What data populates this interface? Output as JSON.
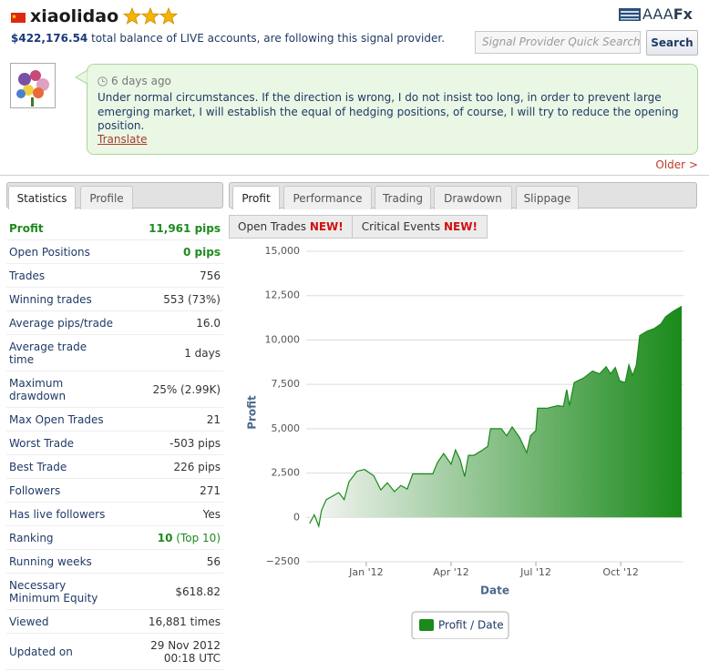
{
  "header": {
    "name": "xiaolidao",
    "balance": "$422,176.54",
    "balance_text": "total balance of LIVE accounts, are following this signal provider.",
    "logo": [
      "AAA",
      "Fx"
    ],
    "search_placeholder": "Signal Provider Quick Search",
    "search_button": "Search"
  },
  "comment": {
    "time": "6 days ago",
    "text": "Under normal circumstances. If the direction is wrong, I do not insist too long, in order to prevent large emerging market, I will establish the equal of hedging positions, of course, I will try to reduce the opening position.",
    "translate": "Translate",
    "older": "Older >"
  },
  "left_tabs": [
    "Statistics",
    "Profile"
  ],
  "stats": [
    {
      "label": "Profit",
      "value": "11,961 pips"
    },
    {
      "label": "Open Positions",
      "value": "0 pips"
    },
    {
      "label": "Trades",
      "value": "756"
    },
    {
      "label": "Winning trades",
      "value": "553 (73%)"
    },
    {
      "label": "Average pips/trade",
      "value": "16.0"
    },
    {
      "label": "Average trade time",
      "value": "1 days"
    },
    {
      "label": "Maximum drawdown",
      "value": "25% (2.99K)"
    },
    {
      "label": "Max Open Trades",
      "value": "21"
    },
    {
      "label": "Worst Trade",
      "value": "-503 pips"
    },
    {
      "label": "Best Trade",
      "value": "226 pips"
    },
    {
      "label": "Followers",
      "value": "271"
    },
    {
      "label": "Has live followers",
      "value": "Yes"
    },
    {
      "label": "Ranking",
      "value": "10",
      "note": "(Top 10)"
    },
    {
      "label": "Running weeks",
      "value": "56"
    },
    {
      "label": "Necessary Minimum Equity",
      "value": "$618.82"
    },
    {
      "label": "Viewed",
      "value": "16,881 times"
    },
    {
      "label": "Updated on",
      "value": "29 Nov 2012 00:18 UTC"
    }
  ],
  "right_tabs": [
    "Profit",
    "Performance",
    "Trading",
    "Drawdown",
    "Slippage"
  ],
  "sub_tabs": [
    {
      "label": "Open Trades",
      "badge": "NEW!"
    },
    {
      "label": "Critical Events",
      "badge": "NEW!"
    }
  ],
  "chart_data": {
    "type": "area",
    "y_label": "Profit",
    "x_label": "Date",
    "grid": true,
    "xlim": [
      2011.823,
      2012.935
    ],
    "xticks": [
      {
        "value": 2012,
        "label": "Jan '12"
      },
      {
        "value": 2012.25,
        "label": "Apr '12"
      },
      {
        "value": 2012.5,
        "label": "Jul '12"
      },
      {
        "value": 2012.75,
        "label": "Oct '12"
      }
    ],
    "ylim": [
      -2500,
      15000
    ],
    "yticks": [
      {
        "value": -2500,
        "label": "−2500"
      },
      0,
      {
        "value": 2500,
        "label": "2,500"
      },
      {
        "value": 5000,
        "label": "5,000"
      },
      {
        "value": 7500,
        "label": "7,500"
      },
      {
        "value": 10000,
        "label": "10,000"
      },
      {
        "value": 12500,
        "label": "12,500"
      },
      {
        "value": 15000,
        "label": "15,000"
      }
    ],
    "x": [
      2011.833,
      2011.847,
      2011.86,
      2011.868,
      2011.882,
      2011.901,
      2011.919,
      2011.935,
      2011.949,
      2011.973,
      2011.995,
      2012.022,
      2012.043,
      2012.062,
      2012.083,
      2012.102,
      2012.121,
      2012.137,
      2012.169,
      2012.196,
      2012.21,
      2012.228,
      2012.25,
      2012.263,
      2012.277,
      2012.29,
      2012.301,
      2012.317,
      2012.339,
      2012.358,
      2012.366,
      2012.398,
      2012.414,
      2012.43,
      2012.452,
      2012.473,
      2012.484,
      2012.5,
      2012.505,
      2012.532,
      2012.565,
      2012.581,
      2012.591,
      2012.599,
      2012.613,
      2012.64,
      2012.667,
      2012.688,
      2012.707,
      2012.72,
      2012.734,
      2012.747,
      2012.763,
      2012.774,
      2012.785,
      2012.796,
      2012.806,
      2012.828,
      2012.849,
      2012.868,
      2012.882,
      2012.903,
      2012.93
    ],
    "series": [
      {
        "name": "Profit / Date",
        "color": "#1a8a1a",
        "values": [
          -350,
          150,
          -500,
          400,
          1000,
          1200,
          1400,
          1000,
          2000,
          2600,
          2700,
          2350,
          1550,
          1950,
          1450,
          1800,
          1600,
          2450,
          2450,
          2450,
          3100,
          3600,
          3000,
          3800,
          3250,
          2300,
          3500,
          3500,
          3750,
          4000,
          5000,
          5000,
          4600,
          5100,
          4500,
          3650,
          4600,
          4900,
          6150,
          6150,
          6300,
          6250,
          7200,
          6300,
          7600,
          7850,
          8250,
          8100,
          8500,
          8100,
          8450,
          7700,
          7600,
          8600,
          8000,
          8600,
          10250,
          10500,
          10650,
          10900,
          11300,
          11600,
          11900
        ]
      }
    ]
  }
}
